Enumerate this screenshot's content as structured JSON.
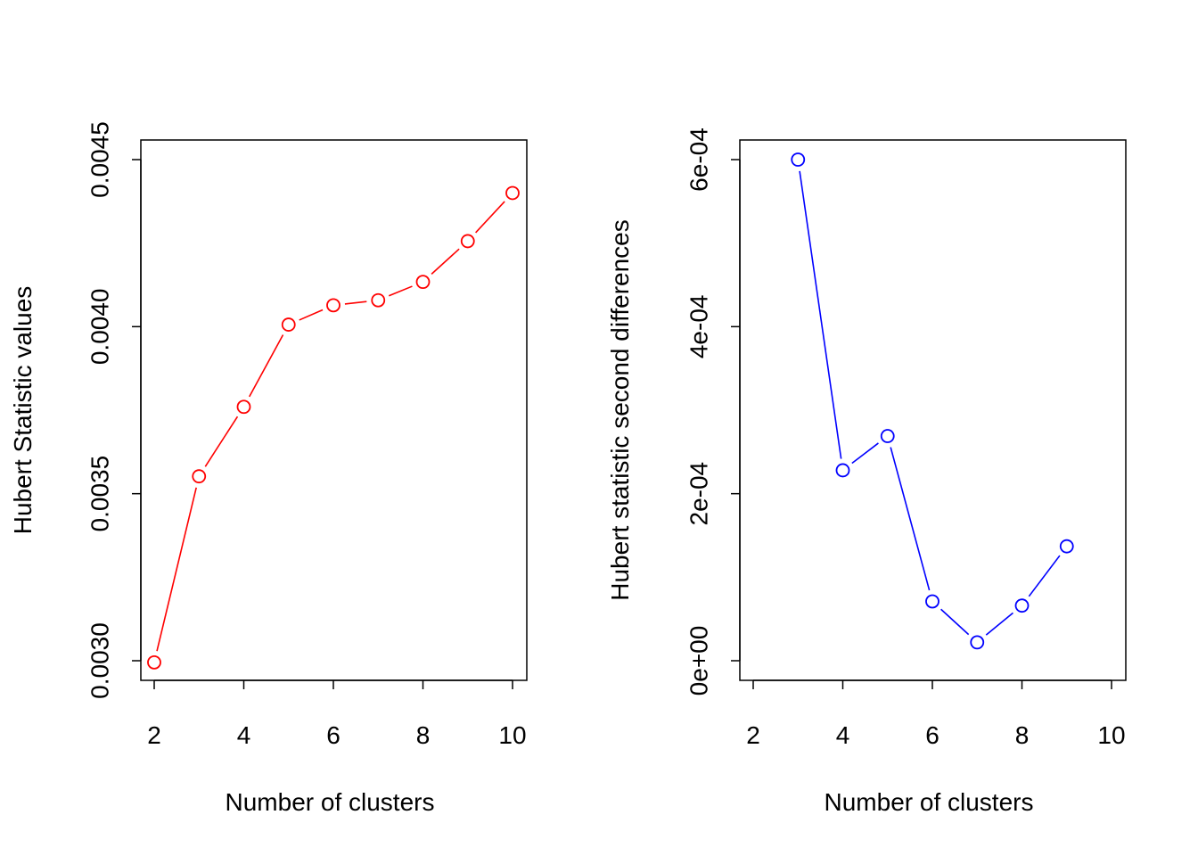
{
  "colors": {
    "left_series": "#ff0000",
    "right_series": "#0000ff",
    "axis": "#000000"
  },
  "chart_data": [
    {
      "type": "line",
      "marker": "open-circle",
      "title": "",
      "xlabel": "Number of clusters",
      "ylabel": "Hubert Statistic values",
      "xlim": [
        2,
        10
      ],
      "ylim": [
        0.003,
        0.0045
      ],
      "xticks": [
        2,
        4,
        6,
        8,
        10
      ],
      "xtick_labels": [
        "2",
        "4",
        "6",
        "8",
        "10"
      ],
      "yticks": [
        0.003,
        0.0035,
        0.004,
        0.0045
      ],
      "ytick_labels": [
        "0.0030",
        "0.0035",
        "0.0040",
        "0.0045"
      ],
      "grid": false,
      "series": [
        {
          "color": "#ff0000",
          "x": [
            2,
            3,
            4,
            5,
            6,
            7,
            8,
            9,
            10
          ],
          "values": [
            0.002995,
            0.003552,
            0.00376,
            0.004006,
            0.004064,
            0.004079,
            0.004134,
            0.004256,
            0.0044
          ]
        }
      ]
    },
    {
      "type": "line",
      "marker": "open-circle",
      "title": "",
      "xlabel": "Number of clusters",
      "ylabel": "Hubert statistic second differences",
      "xlim": [
        2,
        10
      ],
      "ylim": [
        0,
        0.0006
      ],
      "xticks": [
        2,
        4,
        6,
        8,
        10
      ],
      "xtick_labels": [
        "2",
        "4",
        "6",
        "8",
        "10"
      ],
      "yticks": [
        0,
        0.0002,
        0.0004,
        0.0006
      ],
      "ytick_labels": [
        "0e+00",
        "2e-04",
        "4e-04",
        "6e-04"
      ],
      "grid": false,
      "series": [
        {
          "color": "#0000ff",
          "x": [
            3,
            4,
            5,
            6,
            7,
            8,
            9
          ],
          "values": [
            0.0006,
            0.000228,
            0.000269,
            7.1e-05,
            2.2e-05,
            6.6e-05,
            0.000137
          ]
        }
      ]
    }
  ]
}
